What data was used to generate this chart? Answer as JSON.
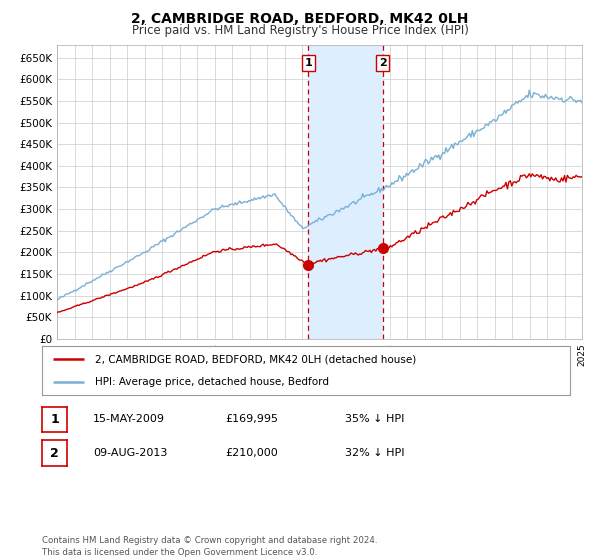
{
  "title": "2, CAMBRIDGE ROAD, BEDFORD, MK42 0LH",
  "subtitle": "Price paid vs. HM Land Registry's House Price Index (HPI)",
  "legend_line1": "2, CAMBRIDGE ROAD, BEDFORD, MK42 0LH (detached house)",
  "legend_line2": "HPI: Average price, detached house, Bedford",
  "transaction1_date": "15-MAY-2009",
  "transaction1_price": "£169,995",
  "transaction1_hpi": "35% ↓ HPI",
  "transaction2_date": "09-AUG-2013",
  "transaction2_price": "£210,000",
  "transaction2_hpi": "32% ↓ HPI",
  "footer": "Contains HM Land Registry data © Crown copyright and database right 2024.\nThis data is licensed under the Open Government Licence v3.0.",
  "transaction1_year": 2009.37,
  "transaction2_year": 2013.6,
  "t1_price_val": 169995,
  "t2_price_val": 210000,
  "line1_color": "#cc0000",
  "line2_color": "#7ab0d4",
  "shade_color": "#ddeeff",
  "grid_color": "#cccccc",
  "bg_color": "#ffffff",
  "ylim_max": 680000,
  "ylim_min": 0
}
